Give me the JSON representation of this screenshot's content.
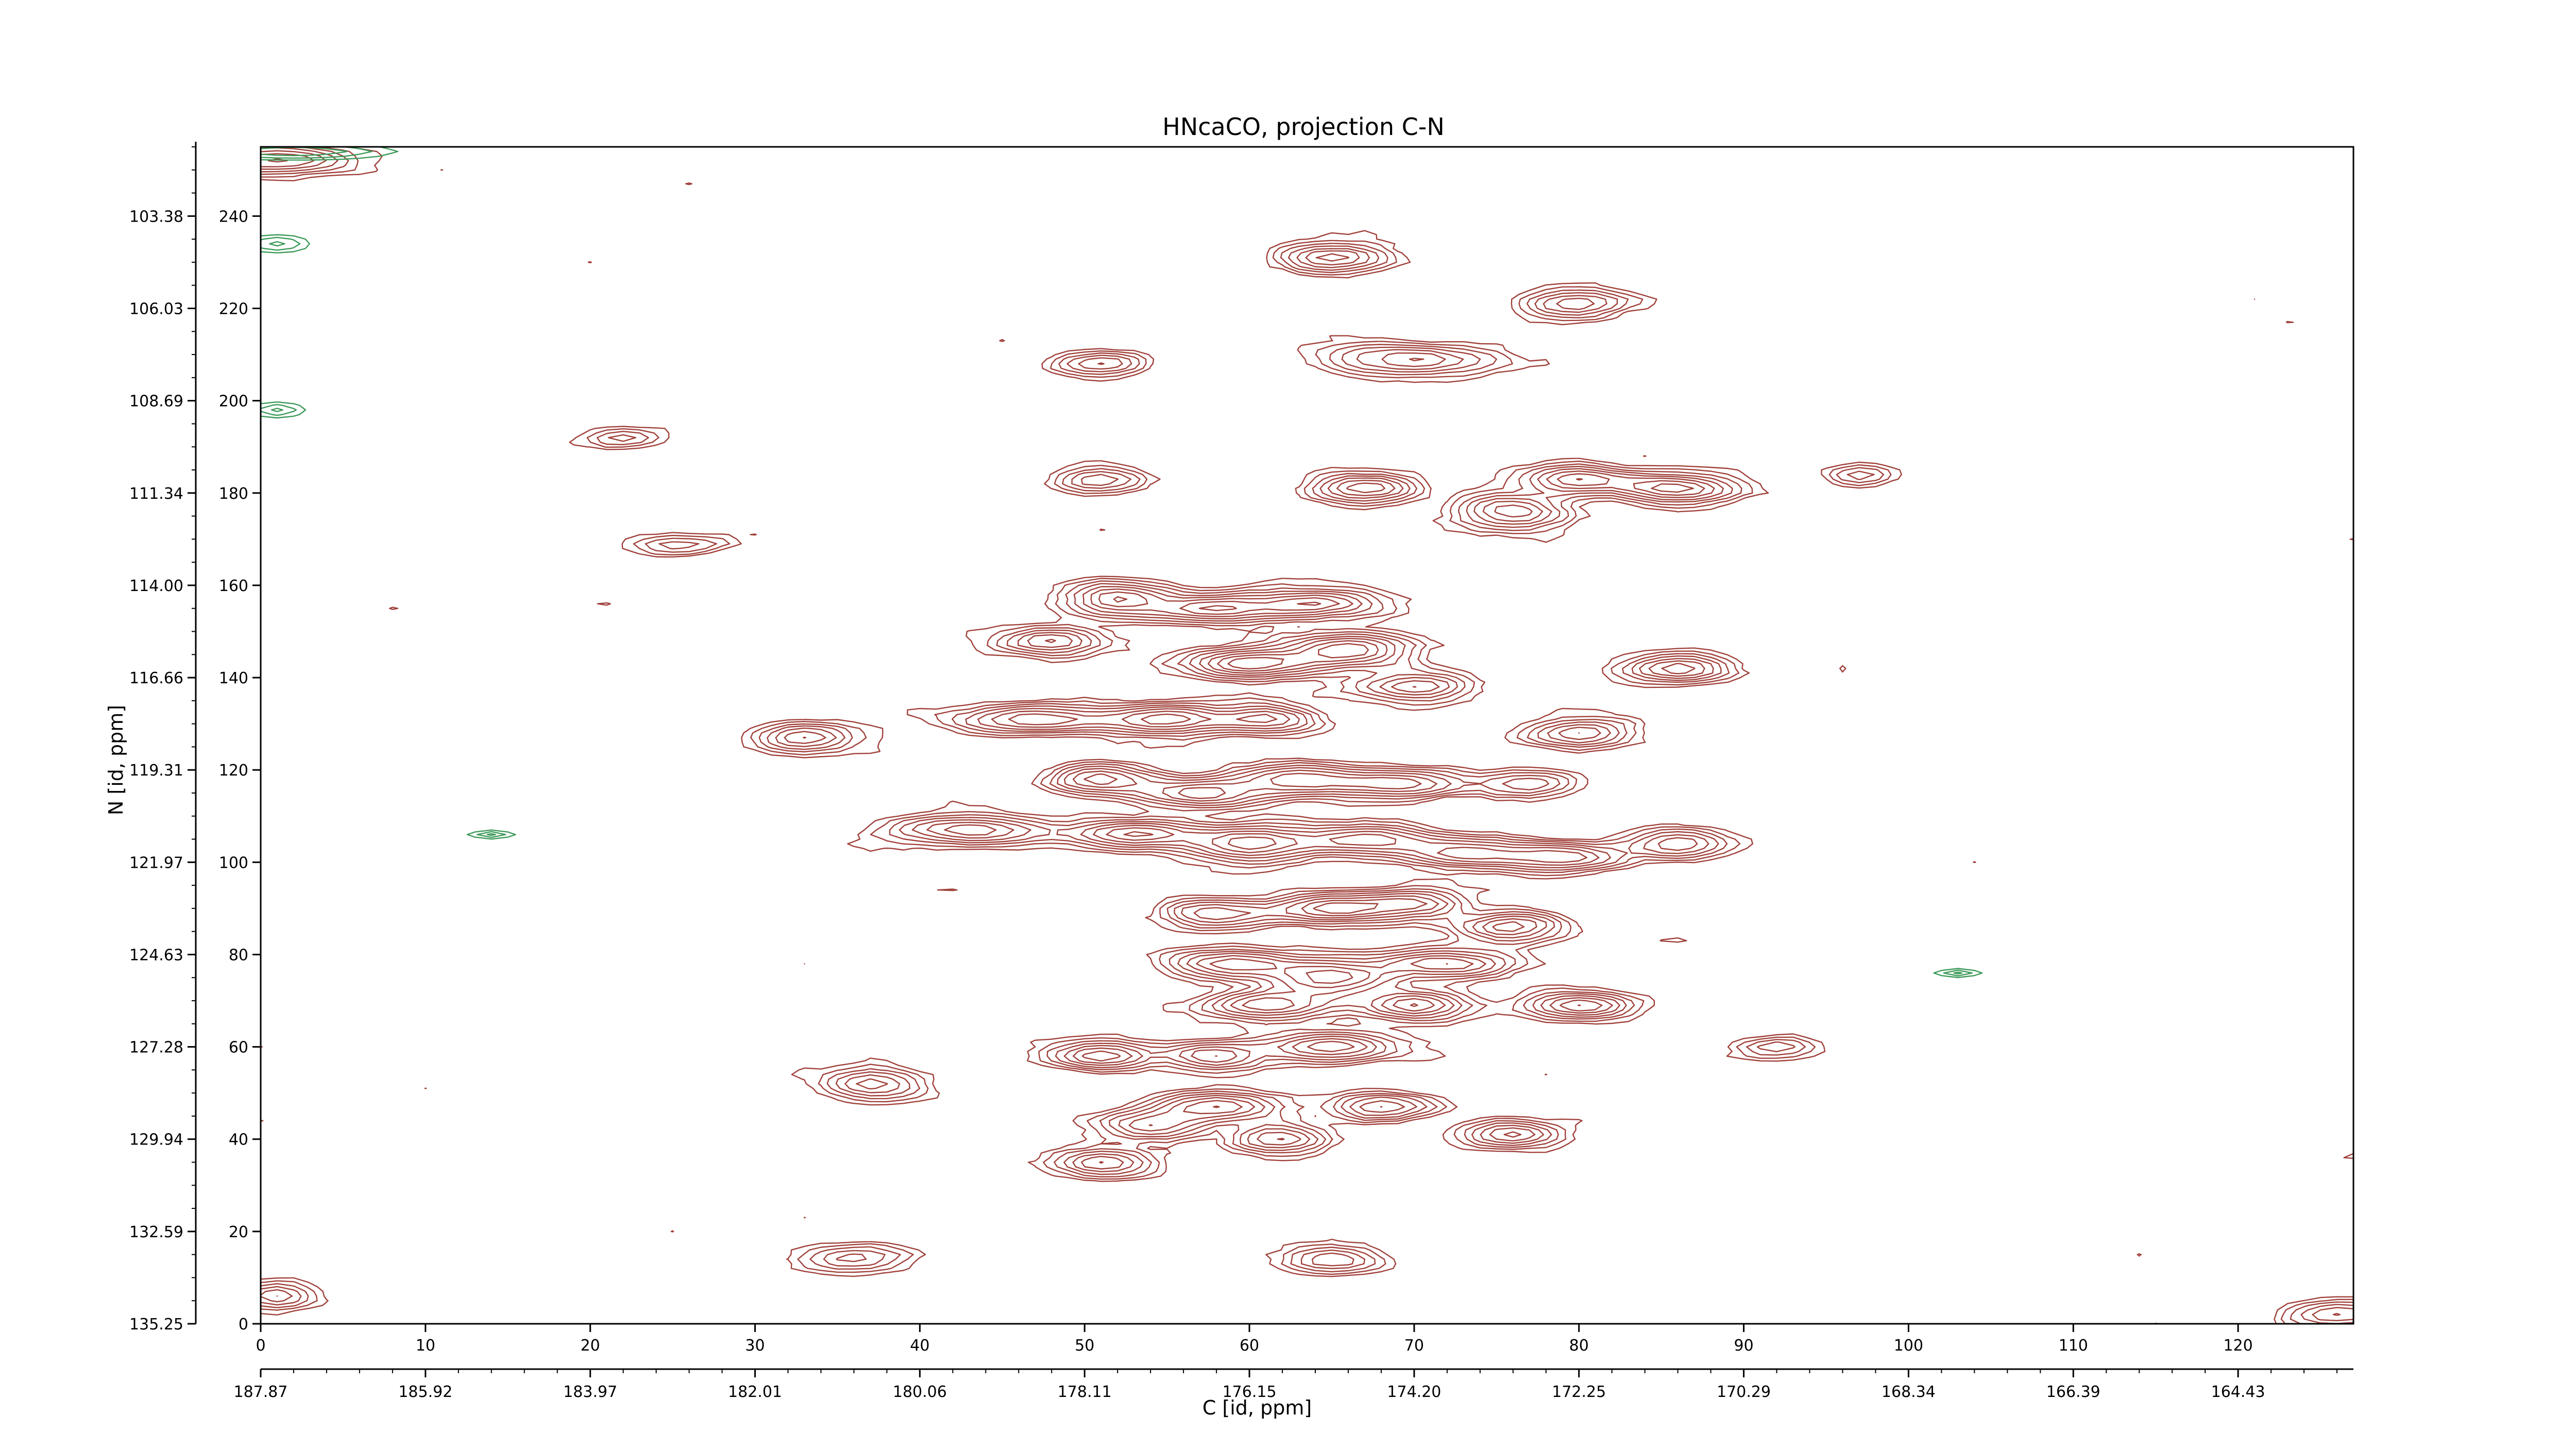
{
  "chart_data": {
    "type": "contour",
    "title": "HNcaCO, projection C-N",
    "xlabel": "C [id, ppm]",
    "ylabel": "N [id, ppm]",
    "xlim": [
      0,
      127
    ],
    "ylim": [
      0,
      255
    ],
    "x_index_ticks": [
      "0",
      "10",
      "20",
      "30",
      "40",
      "50",
      "60",
      "70",
      "80",
      "90",
      "100",
      "110",
      "120"
    ],
    "x_ppm_ticks": [
      "187.87",
      "185.92",
      "183.97",
      "182.01",
      "180.06",
      "178.11",
      "176.15",
      "174.20",
      "172.25",
      "170.29",
      "168.34",
      "166.39",
      "164.43"
    ],
    "y_index_ticks": [
      "0",
      "20",
      "40",
      "60",
      "80",
      "100",
      "120",
      "140",
      "160",
      "180",
      "200",
      "220",
      "240"
    ],
    "y_ppm_ticks": [
      "135.25",
      "132.59",
      "129.94",
      "127.28",
      "124.63",
      "121.97",
      "119.31",
      "116.66",
      "114.00",
      "111.34",
      "108.69",
      "106.03",
      "103.38"
    ],
    "positive_color": "#a0403a",
    "negative_color": "#3d9a5a",
    "peaks": [
      {
        "x": 65,
        "y": 231,
        "sx": 2.0,
        "sy": 2.0,
        "a": 6
      },
      {
        "x": 80,
        "y": 221,
        "sx": 2.0,
        "sy": 2.0,
        "a": 5
      },
      {
        "x": 51,
        "y": 208,
        "sx": 1.8,
        "sy": 1.8,
        "a": 4
      },
      {
        "x": 70,
        "y": 209,
        "sx": 3.5,
        "sy": 2.2,
        "a": 5
      },
      {
        "x": 80,
        "y": 183,
        "sx": 2.2,
        "sy": 2.0,
        "a": 6
      },
      {
        "x": 86,
        "y": 181,
        "sx": 2.2,
        "sy": 2.0,
        "a": 7
      },
      {
        "x": 67,
        "y": 181,
        "sx": 2.0,
        "sy": 2.0,
        "a": 6
      },
      {
        "x": 76,
        "y": 176,
        "sx": 2.0,
        "sy": 2.5,
        "a": 6
      },
      {
        "x": 51,
        "y": 183,
        "sx": 1.8,
        "sy": 1.8,
        "a": 4
      },
      {
        "x": 52,
        "y": 157,
        "sx": 2.0,
        "sy": 2.5,
        "a": 6
      },
      {
        "x": 58,
        "y": 155,
        "sx": 2.5,
        "sy": 2.0,
        "a": 6
      },
      {
        "x": 64,
        "y": 156,
        "sx": 2.5,
        "sy": 2.0,
        "a": 6
      },
      {
        "x": 48,
        "y": 148,
        "sx": 2.0,
        "sy": 2.0,
        "a": 5
      },
      {
        "x": 60,
        "y": 143,
        "sx": 2.5,
        "sy": 2.0,
        "a": 7
      },
      {
        "x": 66,
        "y": 146,
        "sx": 2.5,
        "sy": 2.5,
        "a": 7
      },
      {
        "x": 70,
        "y": 138,
        "sx": 2.2,
        "sy": 2.0,
        "a": 5
      },
      {
        "x": 86,
        "y": 142,
        "sx": 2.0,
        "sy": 2.0,
        "a": 6
      },
      {
        "x": 47,
        "y": 131,
        "sx": 3.0,
        "sy": 2.0,
        "a": 6
      },
      {
        "x": 55,
        "y": 131,
        "sx": 2.5,
        "sy": 2.0,
        "a": 7
      },
      {
        "x": 61,
        "y": 131,
        "sx": 2.0,
        "sy": 2.0,
        "a": 5
      },
      {
        "x": 80,
        "y": 128,
        "sx": 2.0,
        "sy": 2.0,
        "a": 5
      },
      {
        "x": 33,
        "y": 127,
        "sx": 2.0,
        "sy": 2.0,
        "a": 5
      },
      {
        "x": 51,
        "y": 118,
        "sx": 2.0,
        "sy": 2.0,
        "a": 6
      },
      {
        "x": 57,
        "y": 115,
        "sx": 2.5,
        "sy": 2.0,
        "a": 6
      },
      {
        "x": 63,
        "y": 118,
        "sx": 2.5,
        "sy": 2.0,
        "a": 6
      },
      {
        "x": 69,
        "y": 117,
        "sx": 2.5,
        "sy": 2.0,
        "a": 6
      },
      {
        "x": 77,
        "y": 117,
        "sx": 2.0,
        "sy": 2.0,
        "a": 4
      },
      {
        "x": 43,
        "y": 107,
        "sx": 3.0,
        "sy": 2.0,
        "a": 6
      },
      {
        "x": 53,
        "y": 106,
        "sx": 2.5,
        "sy": 2.0,
        "a": 6
      },
      {
        "x": 60,
        "y": 104,
        "sx": 2.5,
        "sy": 2.5,
        "a": 7
      },
      {
        "x": 67,
        "y": 105,
        "sx": 2.5,
        "sy": 2.0,
        "a": 6
      },
      {
        "x": 73,
        "y": 102,
        "sx": 2.5,
        "sy": 2.0,
        "a": 6
      },
      {
        "x": 79,
        "y": 101,
        "sx": 2.5,
        "sy": 2.0,
        "a": 6
      },
      {
        "x": 86,
        "y": 104,
        "sx": 2.0,
        "sy": 2.0,
        "a": 5
      },
      {
        "x": 65,
        "y": 90,
        "sx": 2.5,
        "sy": 2.0,
        "a": 7
      },
      {
        "x": 70,
        "y": 91,
        "sx": 2.0,
        "sy": 2.0,
        "a": 5
      },
      {
        "x": 76,
        "y": 86,
        "sx": 2.0,
        "sy": 2.0,
        "a": 6
      },
      {
        "x": 58,
        "y": 89,
        "sx": 2.0,
        "sy": 2.0,
        "a": 5
      },
      {
        "x": 59,
        "y": 78,
        "sx": 2.5,
        "sy": 2.0,
        "a": 6
      },
      {
        "x": 65,
        "y": 75,
        "sx": 2.5,
        "sy": 2.5,
        "a": 7
      },
      {
        "x": 72,
        "y": 78,
        "sx": 2.5,
        "sy": 2.0,
        "a": 6
      },
      {
        "x": 61,
        "y": 69,
        "sx": 2.5,
        "sy": 2.0,
        "a": 6
      },
      {
        "x": 70,
        "y": 69,
        "sx": 2.0,
        "sy": 2.0,
        "a": 6
      },
      {
        "x": 80,
        "y": 69,
        "sx": 2.0,
        "sy": 2.0,
        "a": 6
      },
      {
        "x": 51,
        "y": 58,
        "sx": 2.0,
        "sy": 2.0,
        "a": 6
      },
      {
        "x": 58,
        "y": 58,
        "sx": 2.0,
        "sy": 2.0,
        "a": 5
      },
      {
        "x": 65,
        "y": 60,
        "sx": 2.5,
        "sy": 2.0,
        "a": 6
      },
      {
        "x": 37,
        "y": 52,
        "sx": 2.0,
        "sy": 2.0,
        "a": 5
      },
      {
        "x": 58,
        "y": 47,
        "sx": 2.5,
        "sy": 2.0,
        "a": 6
      },
      {
        "x": 54,
        "y": 43,
        "sx": 2.0,
        "sy": 2.0,
        "a": 5
      },
      {
        "x": 68,
        "y": 47,
        "sx": 2.0,
        "sy": 2.0,
        "a": 5
      },
      {
        "x": 62,
        "y": 40,
        "sx": 2.0,
        "sy": 2.0,
        "a": 5
      },
      {
        "x": 76,
        "y": 41,
        "sx": 2.0,
        "sy": 2.0,
        "a": 5
      },
      {
        "x": 51,
        "y": 35,
        "sx": 2.0,
        "sy": 2.0,
        "a": 5
      },
      {
        "x": 36,
        "y": 14,
        "sx": 2.0,
        "sy": 2.0,
        "a": 4
      },
      {
        "x": 65,
        "y": 14,
        "sx": 2.0,
        "sy": 2.0,
        "a": 4
      },
      {
        "x": 22,
        "y": 192,
        "sx": 1.5,
        "sy": 1.5,
        "a": 3
      },
      {
        "x": 25,
        "y": 169,
        "sx": 2.0,
        "sy": 1.5,
        "a": 3
      },
      {
        "x": 97,
        "y": 184,
        "sx": 1.5,
        "sy": 1.5,
        "a": 3
      },
      {
        "x": 92,
        "y": 60,
        "sx": 1.5,
        "sy": 1.5,
        "a": 3
      },
      {
        "x": 1,
        "y": 252,
        "sx": 3.0,
        "sy": 2.0,
        "a": 5
      },
      {
        "x": 1,
        "y": 6,
        "sx": 1.5,
        "sy": 2.0,
        "a": 4
      },
      {
        "x": 126,
        "y": 2,
        "sx": 2.0,
        "sy": 2.0,
        "a": 4
      }
    ],
    "negative_peaks": [
      {
        "x": 1,
        "y": 234,
        "sx": 1.2,
        "sy": 1.2,
        "a": 3
      },
      {
        "x": 1,
        "y": 198,
        "sx": 1.0,
        "sy": 1.0,
        "a": 3
      },
      {
        "x": 14,
        "y": 106,
        "sx": 0.8,
        "sy": 0.6,
        "a": 3
      },
      {
        "x": 103,
        "y": 76,
        "sx": 0.8,
        "sy": 0.6,
        "a": 3
      },
      {
        "x": 2,
        "y": 254,
        "sx": 3.5,
        "sy": 1.0,
        "a": 4
      }
    ]
  }
}
